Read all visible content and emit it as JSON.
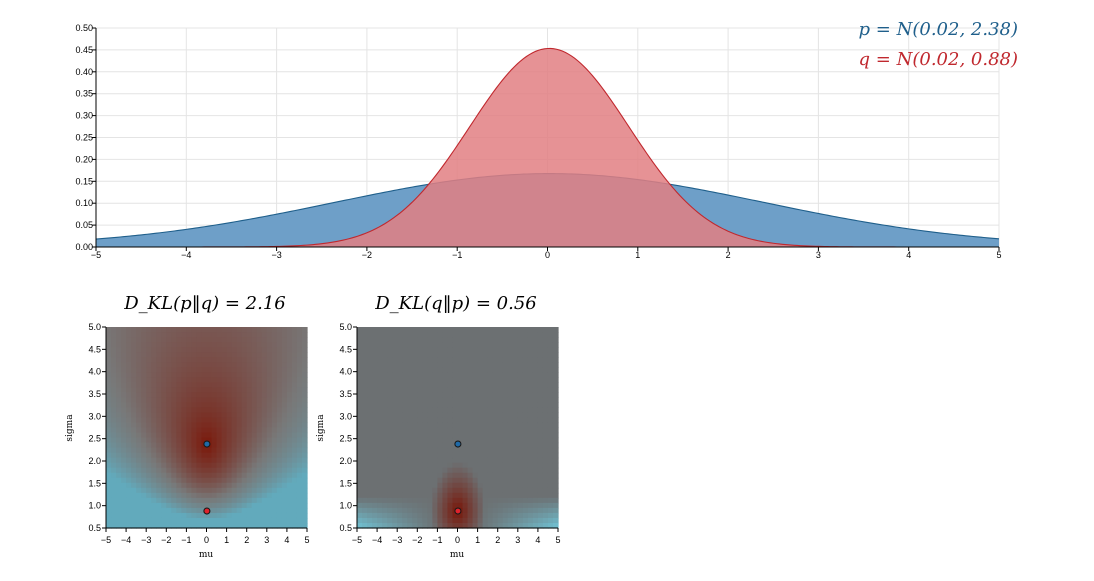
{
  "colors": {
    "p": "#1f5f8b",
    "p_fill": "#6e9fc8",
    "q": "#c0282e",
    "q_fill": "#e27f83",
    "grid": "#e4e4e4"
  },
  "legend": {
    "p_label": "p = N(0.02, 2.38)",
    "q_label": "q = N(0.02, 0.88)"
  },
  "kl_panels": {
    "left_title": "D_KL(p‖q) = 2.16",
    "right_title": "D_KL(q‖p) = 0.56",
    "xlabel": "mu",
    "ylabel": "sigma"
  },
  "chart_data": [
    {
      "type": "area",
      "description": "Two normal density curves",
      "series": [
        {
          "name": "p = N(0.02, 2.38)",
          "mu": 0.02,
          "sigma": 2.38
        },
        {
          "name": "q = N(0.02, 0.88)",
          "mu": 0.02,
          "sigma": 0.88
        }
      ],
      "xlim": [
        -5,
        5
      ],
      "ylim": [
        0,
        0.5
      ],
      "xticks": [
        -5,
        -4,
        -3,
        -2,
        -1,
        0,
        1,
        2,
        3,
        4,
        5
      ],
      "yticks": [
        "0.00",
        "0.05",
        "0.10",
        "0.15",
        "0.20",
        "0.25",
        "0.30",
        "0.35",
        "0.40",
        "0.45",
        "0.50"
      ],
      "grid": true
    },
    {
      "type": "heatmap",
      "title": "D_KL(p‖q) = 2.16",
      "xlabel": "mu",
      "ylabel": "sigma",
      "xlim": [
        -5,
        5
      ],
      "ylim": [
        0.5,
        5.0
      ],
      "xticks": [
        "−5",
        "−4",
        "−3",
        "−2",
        "−1",
        "0",
        "1",
        "2",
        "3",
        "4",
        "5"
      ],
      "yticks": [
        "0.5",
        "1.0",
        "1.5",
        "2.0",
        "2.5",
        "3.0",
        "3.5",
        "4.0",
        "4.5",
        "5.0"
      ],
      "points": [
        {
          "name": "p",
          "mu": 0.02,
          "sigma": 2.38
        },
        {
          "name": "q",
          "mu": 0.02,
          "sigma": 0.88
        }
      ]
    },
    {
      "type": "heatmap",
      "title": "D_KL(q‖p) = 0.56",
      "xlabel": "mu",
      "ylabel": "sigma",
      "xlim": [
        -5,
        5
      ],
      "ylim": [
        0.5,
        5.0
      ],
      "xticks": [
        "−5",
        "−4",
        "−3",
        "−2",
        "−1",
        "0",
        "1",
        "2",
        "3",
        "4",
        "5"
      ],
      "yticks": [
        "0.5",
        "1.0",
        "1.5",
        "2.0",
        "2.5",
        "3.0",
        "3.5",
        "4.0",
        "4.5",
        "5.0"
      ],
      "points": [
        {
          "name": "p",
          "mu": 0.02,
          "sigma": 2.38
        },
        {
          "name": "q",
          "mu": 0.02,
          "sigma": 0.88
        }
      ]
    }
  ]
}
